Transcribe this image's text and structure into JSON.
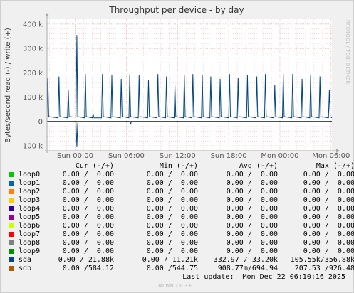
{
  "chart_data": {
    "type": "line",
    "title": "Throughput per device - by day",
    "ylabel": "Bytes/second read (-) / write (+)",
    "side_label": "RRDTOOL / TOBI OETIKER",
    "ylim": [
      -120000,
      420000
    ],
    "yticks": [
      {
        "value": 400000,
        "label": "400 k"
      },
      {
        "value": 300000,
        "label": "300 k"
      },
      {
        "value": 200000,
        "label": "200 k"
      },
      {
        "value": 100000,
        "label": "100 k"
      },
      {
        "value": 0,
        "label": "0"
      },
      {
        "value": -100000,
        "label": "-100 k"
      }
    ],
    "xlim": [
      -3.3,
      30.1
    ],
    "xticks": [
      {
        "value": 0,
        "label": "Sun 00:00"
      },
      {
        "value": 6,
        "label": "Sun 06:00"
      },
      {
        "value": 12,
        "label": "Sun 12:00"
      },
      {
        "value": 18,
        "label": "Sun 18:00"
      },
      {
        "value": 24,
        "label": "Mon 00:00"
      },
      {
        "value": 30,
        "label": "Mon 06:00"
      }
    ],
    "grid": true,
    "series": [
      {
        "name": "sda",
        "color": "#00467a",
        "write_points": [
          [
            -3.3,
            15000
          ],
          [
            -3.2,
            180000
          ],
          [
            -3.1,
            20000
          ],
          [
            -2.0,
            15000
          ],
          [
            -1.9,
            185000
          ],
          [
            -1.8,
            20000
          ],
          [
            -0.9,
            15000
          ],
          [
            -0.8,
            130000
          ],
          [
            -0.7,
            20000
          ],
          [
            0.1,
            18000
          ],
          [
            0.2,
            355000
          ],
          [
            0.3,
            20000
          ],
          [
            1.1,
            15000
          ],
          [
            1.2,
            195000
          ],
          [
            1.3,
            20000
          ],
          [
            2.0,
            15000
          ],
          [
            2.1,
            30000
          ],
          [
            2.2,
            15000
          ],
          [
            3.1,
            15000
          ],
          [
            3.2,
            195000
          ],
          [
            3.3,
            20000
          ],
          [
            4.2,
            15000
          ],
          [
            4.3,
            190000
          ],
          [
            4.4,
            20000
          ],
          [
            5.3,
            15000
          ],
          [
            5.4,
            175000
          ],
          [
            5.5,
            20000
          ],
          [
            6.3,
            15000
          ],
          [
            6.4,
            195000
          ],
          [
            6.5,
            20000
          ],
          [
            7.4,
            15000
          ],
          [
            7.5,
            190000
          ],
          [
            7.6,
            20000
          ],
          [
            8.5,
            15000
          ],
          [
            8.6,
            170000
          ],
          [
            8.7,
            20000
          ],
          [
            9.6,
            15000
          ],
          [
            9.7,
            195000
          ],
          [
            9.8,
            20000
          ],
          [
            10.6,
            15000
          ],
          [
            10.7,
            185000
          ],
          [
            10.8,
            20000
          ],
          [
            11.6,
            15000
          ],
          [
            11.7,
            150000
          ],
          [
            11.8,
            20000
          ],
          [
            12.7,
            15000
          ],
          [
            12.8,
            190000
          ],
          [
            12.9,
            20000
          ],
          [
            13.7,
            15000
          ],
          [
            13.8,
            195000
          ],
          [
            13.9,
            20000
          ],
          [
            14.8,
            15000
          ],
          [
            14.9,
            190000
          ],
          [
            15.0,
            20000
          ],
          [
            15.8,
            15000
          ],
          [
            15.9,
            185000
          ],
          [
            16.0,
            20000
          ],
          [
            16.9,
            15000
          ],
          [
            17.0,
            175000
          ],
          [
            17.1,
            20000
          ],
          [
            18.0,
            15000
          ],
          [
            18.1,
            195000
          ],
          [
            18.2,
            20000
          ],
          [
            19.0,
            15000
          ],
          [
            19.1,
            180000
          ],
          [
            19.2,
            20000
          ],
          [
            20.1,
            15000
          ],
          [
            20.2,
            190000
          ],
          [
            20.3,
            20000
          ],
          [
            21.2,
            15000
          ],
          [
            21.3,
            185000
          ],
          [
            21.4,
            20000
          ],
          [
            22.2,
            15000
          ],
          [
            22.3,
            195000
          ],
          [
            22.4,
            20000
          ],
          [
            23.3,
            15000
          ],
          [
            23.4,
            150000
          ],
          [
            23.5,
            20000
          ],
          [
            24.3,
            15000
          ],
          [
            24.4,
            195000
          ],
          [
            24.5,
            20000
          ],
          [
            25.4,
            15000
          ],
          [
            25.5,
            195000
          ],
          [
            25.6,
            20000
          ],
          [
            26.5,
            15000
          ],
          [
            26.6,
            175000
          ],
          [
            26.7,
            20000
          ],
          [
            27.5,
            15000
          ],
          [
            27.6,
            190000
          ],
          [
            27.7,
            20000
          ],
          [
            28.6,
            15000
          ],
          [
            28.7,
            185000
          ],
          [
            28.8,
            20000
          ],
          [
            29.7,
            15000
          ],
          [
            29.8,
            130000
          ],
          [
            29.9,
            20000
          ],
          [
            30.1,
            15000
          ]
        ],
        "read_points": [
          [
            -3.3,
            0
          ],
          [
            0.1,
            0
          ],
          [
            0.2,
            -105000
          ],
          [
            0.3,
            -8000
          ],
          [
            0.4,
            0
          ],
          [
            6.4,
            0
          ],
          [
            6.5,
            -10000
          ],
          [
            6.6,
            0
          ],
          [
            30.1,
            0
          ]
        ]
      }
    ]
  },
  "legend": {
    "headers": {
      "cur": "Cur (-/+)",
      "min": "Min (-/+)",
      "avg": "Avg (-/+)",
      "max": "Max (-/+)"
    },
    "rows": [
      {
        "name": "loop0",
        "color": "#00cc00",
        "cur": "0.00 /  0.00",
        "min": "0.00 /  0.00",
        "avg": "0.00 /  0.00",
        "max": "0.00 /  0.00"
      },
      {
        "name": "loop1",
        "color": "#0066b3",
        "cur": "0.00 /  0.00",
        "min": "0.00 /  0.00",
        "avg": "0.00 /  0.00",
        "max": "0.00 /  0.00"
      },
      {
        "name": "loop2",
        "color": "#ff8000",
        "cur": "0.00 /  0.00",
        "min": "0.00 /  0.00",
        "avg": "0.00 /  0.00",
        "max": "0.00 /  0.00"
      },
      {
        "name": "loop3",
        "color": "#ffcc00",
        "cur": "0.00 /  0.00",
        "min": "0.00 /  0.00",
        "avg": "0.00 /  0.00",
        "max": "0.00 /  0.00"
      },
      {
        "name": "loop4",
        "color": "#330099",
        "cur": "0.00 /  0.00",
        "min": "0.00 /  0.00",
        "avg": "0.00 /  0.00",
        "max": "0.00 /  0.00"
      },
      {
        "name": "loop5",
        "color": "#990099",
        "cur": "0.00 /  0.00",
        "min": "0.00 /  0.00",
        "avg": "0.00 /  0.00",
        "max": "0.00 /  0.00"
      },
      {
        "name": "loop6",
        "color": "#ccff00",
        "cur": "0.00 /  0.00",
        "min": "0.00 /  0.00",
        "avg": "0.00 /  0.00",
        "max": "0.00 /  0.00"
      },
      {
        "name": "loop7",
        "color": "#ff0000",
        "cur": "0.00 /  0.00",
        "min": "0.00 /  0.00",
        "avg": "0.00 /  0.00",
        "max": "0.00 /  0.00"
      },
      {
        "name": "loop8",
        "color": "#808080",
        "cur": "0.00 /  0.00",
        "min": "0.00 /  0.00",
        "avg": "0.00 /  0.00",
        "max": "0.00 /  0.00"
      },
      {
        "name": "loop9",
        "color": "#008f00",
        "cur": "0.00 /  0.00",
        "min": "0.00 /  0.00",
        "avg": "0.00 /  0.00",
        "max": "0.00 /  0.00"
      },
      {
        "name": "sda",
        "color": "#00487d",
        "cur": "0.00 / 21.88k",
        "min": "0.00 / 11.21k",
        "avg": "332.97 / 33.20k",
        "max": "105.55k/356.88k"
      },
      {
        "name": "sdb",
        "color": "#b35a00",
        "cur": "0.00 /584.12",
        "min": "0.00 /544.75",
        "avg": "908.77m/694.94",
        "max": "207.53 /926.48"
      }
    ]
  },
  "last_update": "Last update:  Mon Dec 22 06:10:16 2025",
  "munin_version": "Munin 2.0.33-1"
}
